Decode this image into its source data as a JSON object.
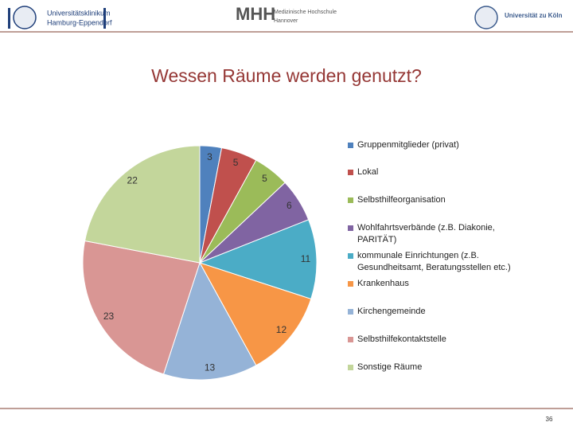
{
  "header": {
    "left_logo": [
      "Universitätsklinikum",
      "Hamburg-Eppendorf"
    ],
    "center_logo_mark": "MHH",
    "center_logo": [
      "Medizinische Hochschule",
      "Hannover"
    ],
    "right_logo": "Universität zu Köln"
  },
  "chart_data": {
    "type": "pie",
    "title": "Wessen Räume werden genutzt?",
    "categories": [
      "Gruppenmitglieder (privat)",
      "Lokal",
      "Selbsthilfeorganisation",
      "Wohlfahrtsverbände (z.B. Diakonie, PARITÄT)",
      "kommunale Einrichtungen (z.B. Gesundheitsamt, Beratungsstellen etc.)",
      "Krankenhaus",
      "Kirchengemeinde",
      "Selbsthilfekontaktstelle",
      "Sonstige Räume"
    ],
    "values": [
      3,
      5,
      5,
      6,
      11,
      12,
      13,
      23,
      22
    ],
    "colors": [
      "#4f81bd",
      "#c0504d",
      "#9bbb59",
      "#8064a2",
      "#4bacc6",
      "#f79646",
      "#95b3d7",
      "#d99694",
      "#c3d69b"
    ],
    "legend": "right"
  },
  "footer": {
    "page_number": "36"
  }
}
